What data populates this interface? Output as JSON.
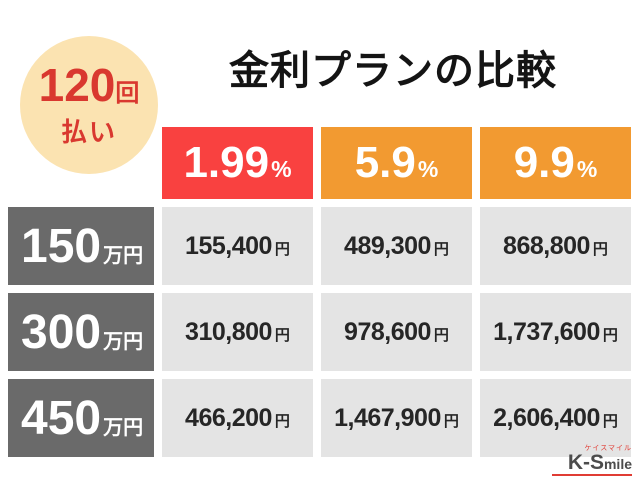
{
  "badge": {
    "number": "120",
    "number_unit": "回",
    "label": "払い"
  },
  "title": "金利プランの比較",
  "colors": {
    "plan_red": "#f94140",
    "plan_orange": "#f29a31",
    "row_label_gray": "#6a6a6a",
    "cell_gray": "#e4e4e4",
    "badge_bg": "#fbe3b1",
    "badge_text": "#d9382f"
  },
  "plans": [
    {
      "rate": "1.99",
      "unit": "%"
    },
    {
      "rate": "5.9",
      "unit": "%"
    },
    {
      "rate": "9.9",
      "unit": "%"
    }
  ],
  "rows": [
    {
      "amount": "150",
      "unit": "万円",
      "values": [
        {
          "num": "155,400",
          "yen": "円"
        },
        {
          "num": "489,300",
          "yen": "円"
        },
        {
          "num": "868,800",
          "yen": "円"
        }
      ]
    },
    {
      "amount": "300",
      "unit": "万円",
      "values": [
        {
          "num": "310,800",
          "yen": "円"
        },
        {
          "num": "978,600",
          "yen": "円"
        },
        {
          "num": "1,737,600",
          "yen": "円"
        }
      ]
    },
    {
      "amount": "450",
      "unit": "万円",
      "values": [
        {
          "num": "466,200",
          "yen": "円"
        },
        {
          "num": "1,467,900",
          "yen": "円"
        },
        {
          "num": "2,606,400",
          "yen": "円"
        }
      ]
    }
  ],
  "logo": {
    "katakana": "ケイスマイル",
    "main_bold": "K-S",
    "main_rest": "mile"
  },
  "chart_data": {
    "type": "table",
    "title": "金利プランの比較",
    "note": "120回払い",
    "column_headers": [
      "1.99%",
      "5.9%",
      "9.9%"
    ],
    "row_headers": [
      "150万円",
      "300万円",
      "450万円"
    ],
    "cells": [
      [
        "155,400円",
        "489,300円",
        "868,800円"
      ],
      [
        "310,800円",
        "978,600円",
        "1,737,600円"
      ],
      [
        "466,200円",
        "1,467,900円",
        "2,606,400円"
      ]
    ]
  }
}
